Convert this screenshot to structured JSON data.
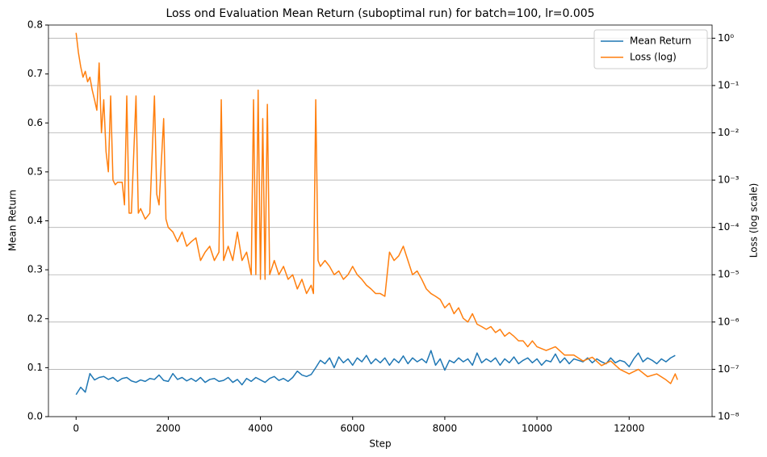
{
  "chart_data": {
    "type": "line",
    "title": "Loss ond Evaluation Mean Return (suboptimal run) for batch=100, lr=0.005",
    "x_label": "Step",
    "y_label": "Mean Return",
    "y2_label": "Loss (log scale)",
    "xlim": [
      -600,
      13800
    ],
    "xticks": [
      0,
      2000,
      4000,
      6000,
      8000,
      10000,
      12000
    ],
    "ylim": [
      0,
      0.8
    ],
    "yticks": [
      {
        "value": 0,
        "label": "0.0"
      },
      0.1,
      0.2,
      0.3,
      0.4,
      0.5,
      0.6,
      0.7,
      0.8
    ],
    "y2lim": [
      1e-08,
      1.9
    ],
    "y2scale": "log",
    "y2ticks": [
      {
        "value": 1e-08,
        "label": "10⁻⁸"
      },
      {
        "value": 1e-07,
        "label": "10⁻⁷"
      },
      {
        "value": 1e-06,
        "label": "10⁻⁶"
      },
      {
        "value": 1e-05,
        "label": "10⁻⁵"
      },
      {
        "value": 0.0001,
        "label": "10⁻⁴"
      },
      {
        "value": 0.001,
        "label": "10⁻³"
      },
      {
        "value": 0.01,
        "label": "10⁻²"
      },
      {
        "value": 0.1,
        "label": "10⁻¹"
      },
      {
        "value": 1,
        "label": "10⁰"
      }
    ],
    "grid": "y2",
    "legend": "upper right",
    "series": [
      {
        "name": "Mean Return",
        "color": "#1f77b4",
        "axis": "y",
        "x": [
          0,
          100,
          200,
          300,
          400,
          500,
          600,
          700,
          800,
          900,
          1000,
          1100,
          1200,
          1300,
          1400,
          1500,
          1600,
          1700,
          1800,
          1900,
          2000,
          2100,
          2200,
          2300,
          2400,
          2500,
          2600,
          2700,
          2800,
          2900,
          3000,
          3100,
          3200,
          3300,
          3400,
          3500,
          3600,
          3700,
          3800,
          3900,
          4000,
          4100,
          4200,
          4300,
          4400,
          4500,
          4600,
          4700,
          4800,
          4900,
          5000,
          5100,
          5200,
          5300,
          5400,
          5500,
          5600,
          5700,
          5800,
          5900,
          6000,
          6100,
          6200,
          6300,
          6400,
          6500,
          6600,
          6700,
          6800,
          6900,
          7000,
          7100,
          7200,
          7300,
          7400,
          7500,
          7600,
          7700,
          7800,
          7900,
          8000,
          8100,
          8200,
          8300,
          8400,
          8500,
          8600,
          8700,
          8800,
          8900,
          9000,
          9100,
          9200,
          9300,
          9400,
          9500,
          9600,
          9700,
          9800,
          9900,
          10000,
          10100,
          10200,
          10300,
          10400,
          10500,
          10600,
          10700,
          10800,
          10900,
          11000,
          11100,
          11200,
          11300,
          11400,
          11500,
          11600,
          11700,
          11800,
          11900,
          12000,
          12100,
          12200,
          12300,
          12400,
          12500,
          12600,
          12700,
          12800,
          12900,
          13000
        ],
        "values": [
          0.045,
          0.06,
          0.05,
          0.088,
          0.075,
          0.08,
          0.082,
          0.076,
          0.08,
          0.072,
          0.078,
          0.08,
          0.073,
          0.07,
          0.075,
          0.072,
          0.078,
          0.076,
          0.085,
          0.074,
          0.072,
          0.088,
          0.076,
          0.08,
          0.073,
          0.078,
          0.072,
          0.08,
          0.07,
          0.076,
          0.078,
          0.072,
          0.074,
          0.08,
          0.07,
          0.076,
          0.065,
          0.078,
          0.072,
          0.08,
          0.075,
          0.07,
          0.078,
          0.082,
          0.074,
          0.078,
          0.072,
          0.08,
          0.093,
          0.085,
          0.082,
          0.086,
          0.1,
          0.115,
          0.108,
          0.12,
          0.1,
          0.122,
          0.11,
          0.118,
          0.105,
          0.12,
          0.112,
          0.125,
          0.108,
          0.118,
          0.11,
          0.12,
          0.105,
          0.118,
          0.11,
          0.124,
          0.108,
          0.12,
          0.112,
          0.118,
          0.11,
          0.135,
          0.105,
          0.118,
          0.095,
          0.115,
          0.11,
          0.12,
          0.112,
          0.118,
          0.105,
          0.13,
          0.11,
          0.118,
          0.112,
          0.12,
          0.105,
          0.118,
          0.11,
          0.122,
          0.108,
          0.115,
          0.12,
          0.11,
          0.118,
          0.105,
          0.115,
          0.112,
          0.128,
          0.11,
          0.12,
          0.108,
          0.118,
          0.115,
          0.112,
          0.12,
          0.11,
          0.118,
          0.112,
          0.108,
          0.12,
          0.11,
          0.115,
          0.112,
          0.102,
          0.118,
          0.13,
          0.112,
          0.12,
          0.115,
          0.108,
          0.118,
          0.112,
          0.12,
          0.125
        ]
      },
      {
        "name": "Loss (log)",
        "color": "#ff7f0e",
        "axis": "y2",
        "x": [
          0,
          50,
          100,
          150,
          200,
          250,
          300,
          350,
          400,
          450,
          500,
          550,
          600,
          650,
          700,
          750,
          800,
          850,
          900,
          1000,
          1050,
          1100,
          1150,
          1200,
          1300,
          1350,
          1400,
          1500,
          1600,
          1700,
          1750,
          1800,
          1900,
          1950,
          2000,
          2100,
          2200,
          2300,
          2400,
          2500,
          2600,
          2700,
          2800,
          2900,
          3000,
          3100,
          3150,
          3200,
          3300,
          3400,
          3500,
          3600,
          3700,
          3800,
          3850,
          3900,
          3950,
          4000,
          4050,
          4100,
          4150,
          4200,
          4300,
          4400,
          4500,
          4600,
          4700,
          4800,
          4900,
          5000,
          5100,
          5150,
          5200,
          5250,
          5300,
          5400,
          5500,
          5600,
          5700,
          5800,
          5900,
          6000,
          6100,
          6200,
          6300,
          6400,
          6500,
          6600,
          6700,
          6800,
          6900,
          7000,
          7100,
          7200,
          7300,
          7400,
          7500,
          7600,
          7700,
          7800,
          7900,
          8000,
          8100,
          8200,
          8300,
          8400,
          8500,
          8600,
          8700,
          8800,
          8900,
          9000,
          9100,
          9200,
          9300,
          9400,
          9500,
          9600,
          9700,
          9800,
          9900,
          10000,
          10200,
          10400,
          10600,
          10800,
          11000,
          11200,
          11400,
          11600,
          11800,
          12000,
          12200,
          12400,
          12600,
          12800,
          12900,
          13000,
          13050
        ],
        "values": [
          1.3,
          0.5,
          0.25,
          0.15,
          0.2,
          0.12,
          0.15,
          0.08,
          0.05,
          0.03,
          0.3,
          0.01,
          0.05,
          0.004,
          0.0015,
          0.06,
          0.001,
          0.0008,
          0.0009,
          0.0009,
          0.0003,
          0.06,
          0.0002,
          0.0002,
          0.06,
          0.0002,
          0.00025,
          0.00015,
          0.0002,
          0.06,
          0.0005,
          0.0003,
          0.02,
          0.00015,
          0.0001,
          8e-05,
          5e-05,
          8e-05,
          4e-05,
          5e-05,
          6e-05,
          2e-05,
          3e-05,
          4e-05,
          2e-05,
          3e-05,
          0.05,
          2e-05,
          4e-05,
          2e-05,
          8e-05,
          2e-05,
          3e-05,
          1e-05,
          0.05,
          1e-05,
          0.08,
          8e-06,
          0.02,
          8e-06,
          0.04,
          1e-05,
          2e-05,
          1e-05,
          1.5e-05,
          8e-06,
          1e-05,
          5e-06,
          8e-06,
          4e-06,
          6e-06,
          4e-06,
          0.05,
          2e-05,
          1.5e-05,
          2e-05,
          1.5e-05,
          1e-05,
          1.2e-05,
          8e-06,
          1e-05,
          1.5e-05,
          1e-05,
          8e-06,
          6e-06,
          5e-06,
          4e-06,
          4e-06,
          3.5e-06,
          3e-05,
          2e-05,
          2.5e-05,
          4e-05,
          2e-05,
          1e-05,
          1.2e-05,
          8e-06,
          5e-06,
          4e-06,
          3.5e-06,
          3e-06,
          2e-06,
          2.5e-06,
          1.5e-06,
          2e-06,
          1.2e-06,
          1e-06,
          1.5e-06,
          9e-07,
          8e-07,
          7e-07,
          8e-07,
          6e-07,
          7e-07,
          5e-07,
          6e-07,
          5e-07,
          4e-07,
          4e-07,
          3e-07,
          4e-07,
          3e-07,
          2.5e-07,
          3e-07,
          2e-07,
          2e-07,
          1.5e-07,
          1.8e-07,
          1.2e-07,
          1.5e-07,
          1e-07,
          8e-08,
          1e-07,
          7e-08,
          8e-08,
          6e-08,
          5e-08,
          8e-08,
          6e-08
        ]
      }
    ]
  }
}
